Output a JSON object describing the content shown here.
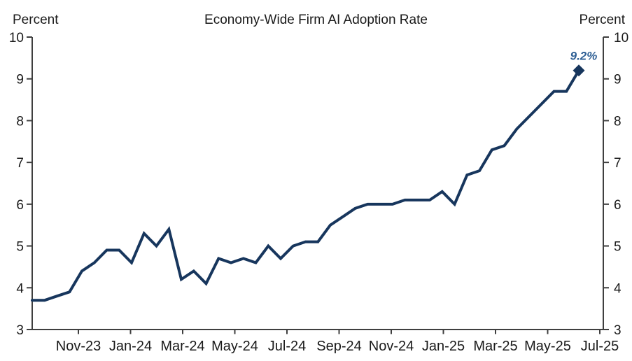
{
  "chart_data": {
    "type": "line",
    "title": "Economy-Wide Firm AI Adoption Rate",
    "left_axis_unit_label": "Percent",
    "right_axis_unit_label": "Percent",
    "ylim": [
      3,
      10
    ],
    "y_ticks": [
      10,
      9,
      8,
      7,
      6,
      5,
      4,
      3
    ],
    "x_tick_labels": [
      "Nov-23",
      "Jan-24",
      "Mar-24",
      "May-24",
      "Jul-24",
      "Sep-24",
      "Nov-24",
      "Jan-25",
      "Mar-25",
      "May-25",
      "Jul-25"
    ],
    "grid": "off",
    "legend": "none",
    "series": [
      {
        "name": "Economy-wide firm AI adoption rate",
        "cadence": "biweekly",
        "values": [
          3.7,
          3.7,
          3.8,
          3.9,
          4.4,
          4.6,
          4.9,
          4.9,
          4.6,
          5.3,
          5.0,
          5.4,
          4.2,
          4.4,
          4.1,
          4.7,
          4.6,
          4.7,
          4.6,
          5.0,
          4.7,
          5.0,
          5.1,
          5.1,
          5.5,
          5.7,
          5.9,
          6.0,
          6.0,
          6.0,
          6.1,
          6.1,
          6.1,
          6.3,
          6.0,
          6.7,
          6.8,
          7.3,
          7.4,
          7.8,
          8.1,
          8.4,
          8.7,
          8.7,
          9.2
        ]
      }
    ],
    "end_point": {
      "label": "9.2%",
      "value": 9.2,
      "marker": "diamond"
    },
    "colors": {
      "line": "#17365D",
      "marker": "#17365D",
      "end_label_text": "#2E5F94",
      "axis": "#3F3F3F",
      "tick_text": "#1A1A1A"
    }
  }
}
